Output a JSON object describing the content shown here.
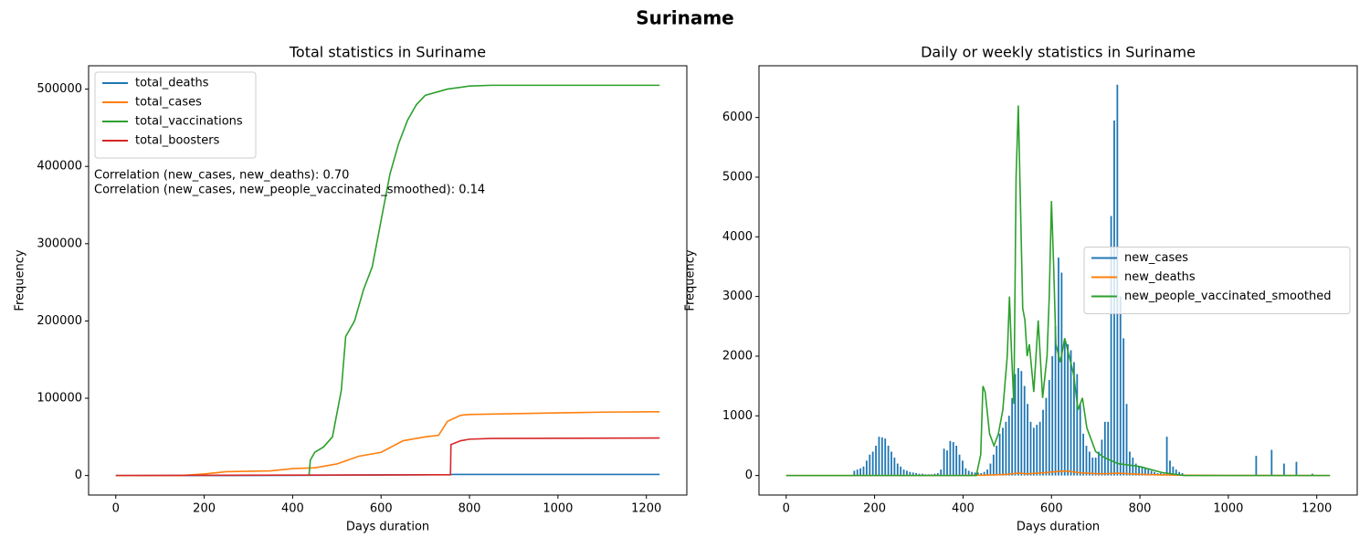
{
  "title": "Suriname",
  "chart_data": [
    {
      "type": "line",
      "title": "Total statistics in Suriname",
      "xlabel": "Days duration",
      "ylabel": "Frequency",
      "xlim": [
        -61.5,
        1291.5
      ],
      "xticks": [
        0,
        200,
        400,
        600,
        800,
        1000,
        1200
      ],
      "ylim": [
        -25250,
        530250
      ],
      "yticks": [
        0,
        100000,
        200000,
        300000,
        400000,
        500000
      ],
      "legend": "upper left",
      "annotations": [
        "Correlation (new_cases, new_deaths): 0.70",
        "Correlation (new_cases, new_people_vaccinated_smoothed): 0.14"
      ],
      "series": [
        {
          "name": "total_deaths",
          "color": "#1f77b4",
          "x": [
            0,
            200,
            400,
            600,
            757,
            760,
            1230
          ],
          "values": [
            0,
            20,
            150,
            700,
            1200,
            1400,
            1400
          ]
        },
        {
          "name": "total_cases",
          "color": "#ff7f0e",
          "x": [
            0,
            150,
            200,
            250,
            350,
            400,
            450,
            500,
            550,
            600,
            650,
            700,
            730,
            750,
            780,
            800,
            900,
            1000,
            1100,
            1230
          ],
          "values": [
            0,
            100,
            2000,
            5000,
            6000,
            9000,
            10000,
            15000,
            25000,
            30000,
            45000,
            50000,
            52000,
            70000,
            78000,
            79000,
            80000,
            81000,
            82000,
            82500
          ]
        },
        {
          "name": "total_vaccinations",
          "color": "#2ca02c",
          "x": [
            437,
            440,
            450,
            470,
            490,
            500,
            510,
            520,
            540,
            560,
            580,
            600,
            620,
            640,
            660,
            680,
            700,
            750,
            800,
            850,
            1230
          ],
          "values": [
            0,
            20000,
            30000,
            37000,
            50000,
            80000,
            110000,
            180000,
            200000,
            240000,
            270000,
            330000,
            390000,
            430000,
            460000,
            480000,
            492000,
            500000,
            504000,
            505000,
            505000
          ]
        },
        {
          "name": "total_boosters",
          "color": "#d62728",
          "x": [
            0,
            750,
            757,
            758,
            780,
            800,
            850,
            1230
          ],
          "values": [
            0,
            1000,
            1000,
            40000,
            45000,
            47000,
            48000,
            48500
          ]
        }
      ]
    },
    {
      "type": "line",
      "title": "Daily or weekly statistics in Suriname",
      "xlabel": "Days duration",
      "ylabel": "Frequency",
      "xlim": [
        -61.5,
        1291.5
      ],
      "xticks": [
        0,
        200,
        400,
        600,
        800,
        1000,
        1200
      ],
      "ylim": [
        -327,
        6867
      ],
      "yticks": [
        0,
        1000,
        2000,
        3000,
        4000,
        5000,
        6000
      ],
      "legend": "center right",
      "series": [
        {
          "name": "new_cases",
          "color": "#1f77b4",
          "x": [
            154,
            161,
            168,
            175,
            182,
            189,
            196,
            203,
            210,
            217,
            224,
            231,
            238,
            245,
            252,
            259,
            266,
            273,
            280,
            287,
            294,
            301,
            308,
            315,
            322,
            329,
            336,
            343,
            350,
            357,
            364,
            371,
            378,
            385,
            392,
            399,
            406,
            413,
            420,
            427,
            434,
            441,
            448,
            455,
            462,
            469,
            476,
            483,
            490,
            497,
            504,
            511,
            518,
            525,
            532,
            539,
            546,
            553,
            560,
            567,
            574,
            581,
            588,
            595,
            602,
            609,
            616,
            623,
            630,
            637,
            644,
            651,
            658,
            665,
            672,
            679,
            686,
            693,
            700,
            707,
            714,
            721,
            728,
            735,
            742,
            749,
            756,
            763,
            770,
            777,
            784,
            791,
            798,
            805,
            812,
            819,
            826,
            833,
            840,
            847,
            854,
            861,
            868,
            875,
            882,
            889,
            896,
            1063,
            1098,
            1126,
            1154,
            1190
          ],
          "values": [
            80,
            100,
            120,
            150,
            250,
            350,
            400,
            500,
            650,
            640,
            620,
            500,
            400,
            300,
            200,
            150,
            100,
            80,
            60,
            50,
            40,
            30,
            30,
            20,
            20,
            20,
            30,
            40,
            100,
            450,
            420,
            580,
            560,
            500,
            350,
            250,
            120,
            80,
            60,
            50,
            50,
            40,
            60,
            100,
            200,
            350,
            500,
            700,
            800,
            900,
            1000,
            1300,
            1700,
            1800,
            1750,
            1500,
            1200,
            900,
            800,
            850,
            900,
            1100,
            1300,
            1600,
            2000,
            2500,
            3650,
            3400,
            2250,
            2200,
            2100,
            1900,
            1700,
            1200,
            700,
            500,
            400,
            300,
            300,
            400,
            600,
            900,
            900,
            4350,
            5950,
            6550,
            3000,
            2300,
            1200,
            400,
            300,
            200,
            150,
            150,
            120,
            100,
            80,
            60,
            40,
            40,
            30,
            650,
            250,
            150,
            100,
            60,
            40,
            330,
            430,
            200,
            230,
            30
          ]
        },
        {
          "name": "new_deaths",
          "color": "#ff7f0e",
          "x": [
            0,
            400,
            430,
            440,
            445,
            450,
            460,
            470,
            480,
            490,
            500,
            505,
            510,
            515,
            520,
            525,
            530,
            535,
            540,
            545,
            550,
            560,
            570,
            580,
            590,
            595,
            600,
            605,
            610,
            620,
            630,
            640,
            650,
            660,
            670,
            680,
            690,
            700,
            720,
            750,
            800,
            850,
            900,
            1000,
            1230
          ],
          "values": [
            0,
            0,
            5,
            5,
            5,
            5,
            10,
            10,
            15,
            15,
            20,
            25,
            30,
            30,
            35,
            40,
            40,
            35,
            30,
            30,
            30,
            35,
            40,
            45,
            50,
            55,
            60,
            60,
            65,
            70,
            75,
            70,
            60,
            50,
            45,
            40,
            35,
            30,
            30,
            40,
            20,
            10,
            5,
            2,
            0
          ]
        },
        {
          "name": "new_people_vaccinated_smoothed",
          "color": "#2ca02c",
          "x": [
            0,
            400,
            430,
            440,
            445,
            450,
            460,
            470,
            480,
            490,
            500,
            505,
            510,
            515,
            520,
            525,
            530,
            535,
            540,
            545,
            550,
            560,
            570,
            580,
            590,
            595,
            600,
            605,
            610,
            620,
            630,
            640,
            650,
            660,
            670,
            680,
            690,
            700,
            720,
            750,
            800,
            850,
            900,
            1000,
            1230
          ],
          "values": [
            0,
            0,
            0,
            350,
            1500,
            1400,
            700,
            500,
            700,
            1100,
            2000,
            3000,
            2000,
            1200,
            5000,
            6200,
            4500,
            2800,
            2600,
            2000,
            2200,
            1400,
            2600,
            1300,
            2000,
            3000,
            4600,
            3500,
            2200,
            1900,
            2300,
            2000,
            1700,
            1100,
            1300,
            800,
            600,
            400,
            300,
            200,
            150,
            50,
            0,
            0,
            0
          ]
        }
      ]
    }
  ]
}
